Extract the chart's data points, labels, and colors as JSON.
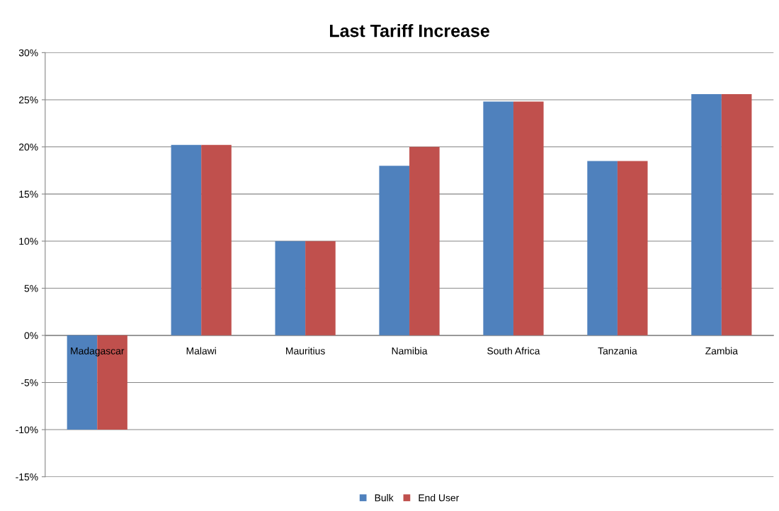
{
  "chart_data": {
    "type": "bar",
    "title": "Last Tariff Increase",
    "categories": [
      "Madagascar",
      "Malawi",
      "Mauritius",
      "Namibia",
      "South Africa",
      "Tanzania",
      "Zambia"
    ],
    "series": [
      {
        "name": "Bulk",
        "color": "#4f81bd",
        "values": [
          -10,
          20.2,
          10,
          18,
          24.8,
          18.5,
          25.6
        ]
      },
      {
        "name": "End User",
        "color": "#c0504d",
        "values": [
          -10,
          20.2,
          10,
          20,
          24.8,
          18.5,
          25.6
        ]
      }
    ],
    "ylim": [
      -15,
      30
    ],
    "yticks": [
      {
        "value": -15,
        "label": "-15%"
      },
      {
        "value": -10,
        "label": "-10%"
      },
      {
        "value": -5,
        "label": "-5%"
      },
      {
        "value": 0,
        "label": "0%"
      },
      {
        "value": 5,
        "label": "5%"
      },
      {
        "value": 10,
        "label": "10%"
      },
      {
        "value": 15,
        "label": "15%"
      },
      {
        "value": 20,
        "label": "20%"
      },
      {
        "value": 25,
        "label": "25%"
      },
      {
        "value": 30,
        "label": "30%"
      }
    ],
    "grid": "y",
    "legend": "bottom"
  }
}
